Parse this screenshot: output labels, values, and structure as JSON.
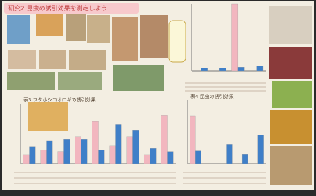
{
  "title": "研究2 昆虫の誘引効果を測定しよう",
  "charts": [
    {
      "type": "bar",
      "ylim": [
        0,
        100
      ],
      "series": [
        {
          "color": "#f2b6bf",
          "values": [
            null,
            null,
            100,
            null
          ]
        },
        {
          "color": "#3f7fc8",
          "values": [
            5,
            5,
            6,
            8
          ]
        }
      ]
    },
    {
      "type": "bar",
      "title": "表3 フタホシコオロギの誘引効果",
      "ylim": [
        0,
        100
      ],
      "series": [
        {
          "color": "#f2b6bf",
          "values": [
            15,
            22,
            20,
            45,
            70,
            30,
            45,
            15,
            80
          ]
        },
        {
          "color": "#3f7fc8",
          "values": [
            28,
            38,
            40,
            40,
            22,
            65,
            55,
            25,
            20
          ]
        }
      ]
    },
    {
      "type": "bar",
      "title": "表4 昆虫の誘引効果",
      "ylim": [
        0,
        100
      ],
      "series": [
        {
          "color": "#f2b6bf",
          "values": [
            75,
            null,
            null,
            null,
            null
          ]
        },
        {
          "color": "#3f7fc8",
          "values": [
            20,
            null,
            30,
            15,
            45
          ]
        }
      ]
    }
  ]
}
